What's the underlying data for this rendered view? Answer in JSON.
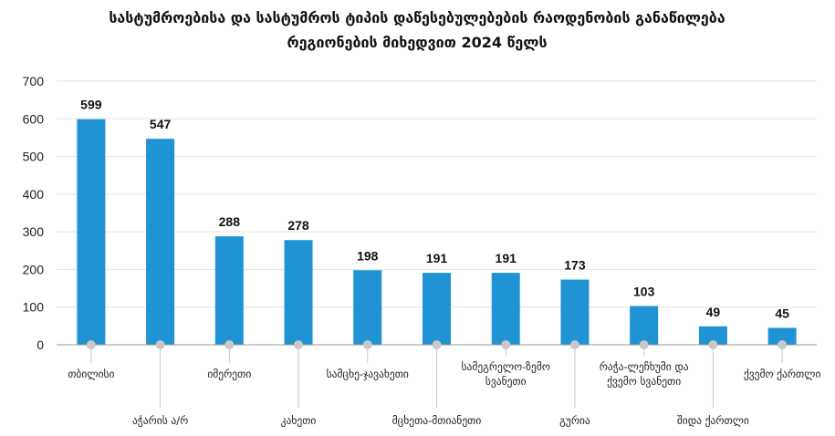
{
  "chart_data": {
    "type": "bar",
    "title_line1": "სასტუმროებისა და სასტუმროს ტიპის დაწესებულებების რაოდენობის განაწილება",
    "title_line2": "რეგიონების მიხედვით 2024 წელს",
    "categories": [
      [
        "თბილისი"
      ],
      [
        "აჭარის ა/რ"
      ],
      [
        "იმერეთი"
      ],
      [
        "კახეთი"
      ],
      [
        "სამცხე-ჯავახეთი"
      ],
      [
        "მცხეთა-მთიანეთი"
      ],
      [
        "სამეგრელო-ზემო",
        "სვანეთი"
      ],
      [
        "გურია"
      ],
      [
        "რაჭა-ლეჩხუმი და",
        "ქვემო სვანეთი"
      ],
      [
        "შიდა ქართლი"
      ],
      [
        "ქვემო ქართლი"
      ]
    ],
    "values": [
      599,
      547,
      288,
      278,
      198,
      191,
      191,
      173,
      103,
      49,
      45
    ],
    "ylim": [
      0,
      700
    ],
    "yticks": [
      0,
      100,
      200,
      300,
      400,
      500,
      600,
      700
    ],
    "grid": true,
    "bar_color": "#1f93d4",
    "grid_color": "#e3e3e3",
    "marker_color": "#c8c8c8"
  }
}
